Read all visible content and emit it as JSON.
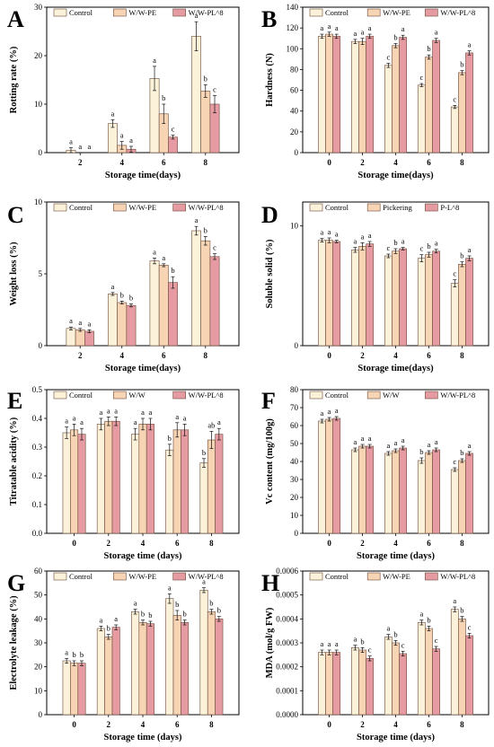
{
  "colors": {
    "control": "#fbf2d9",
    "treat1": "#f7d4b4",
    "treat2": "#e59ba1"
  },
  "chart_data": [
    {
      "letter": "A",
      "type": "bar",
      "ylabel": "Rotting rate (%)",
      "xlabel": "Storage time(days)",
      "categories": [
        "2",
        "4",
        "6",
        "8"
      ],
      "ylim": [
        0,
        30
      ],
      "yticks": [
        "0",
        "10",
        "20",
        "30"
      ],
      "series": [
        {
          "name": "Control",
          "values": [
            0.5,
            6.0,
            15.3,
            24.0
          ],
          "errors": [
            0.5,
            0.8,
            2.5,
            3.0
          ],
          "sig": [
            "a",
            "a",
            "a",
            "a"
          ]
        },
        {
          "name": "W/W-PE",
          "values": [
            0.0,
            1.5,
            8.0,
            12.7
          ],
          "errors": [
            0,
            0.8,
            2.0,
            1.3
          ],
          "sig": [
            "a",
            "a",
            "b",
            "b"
          ]
        },
        {
          "name": "W/W-PL^8",
          "values": [
            0.0,
            0.7,
            3.2,
            10.0
          ],
          "errors": [
            0,
            0.6,
            0.4,
            1.8
          ],
          "sig": [
            "a",
            "a",
            "c",
            "c"
          ]
        }
      ]
    },
    {
      "letter": "B",
      "type": "bar",
      "ylabel": "Hardness (N)",
      "xlabel": "Storage time(days)",
      "categories": [
        "0",
        "2",
        "4",
        "6",
        "8"
      ],
      "ylim": [
        0,
        140
      ],
      "yticks": [
        "0",
        "20",
        "40",
        "60",
        "80",
        "100",
        "120",
        "140"
      ],
      "series": [
        {
          "name": "Control",
          "values": [
            112,
            107,
            84,
            65,
            44
          ],
          "errors": [
            2,
            2,
            2,
            1.5,
            1.5
          ],
          "sig": [
            "a",
            "a",
            "c",
            "c",
            "c"
          ]
        },
        {
          "name": "W/W-PE",
          "values": [
            114,
            107,
            103,
            92,
            77
          ],
          "errors": [
            2,
            3,
            2,
            2,
            2
          ],
          "sig": [
            "a",
            "a",
            "b",
            "b",
            "b"
          ]
        },
        {
          "name": "W/W-PL^8",
          "values": [
            112,
            112,
            111,
            108,
            96
          ],
          "errors": [
            2,
            2,
            2,
            2,
            2
          ],
          "sig": [
            "a",
            "a",
            "a",
            "a",
            "a"
          ]
        }
      ]
    },
    {
      "letter": "C",
      "type": "bar",
      "ylabel": "Weight loss (%)",
      "xlabel": "Storage time(days)",
      "categories": [
        "2",
        "4",
        "6",
        "8"
      ],
      "ylim": [
        0,
        10
      ],
      "yticks": [
        "0",
        "5",
        "10"
      ],
      "series": [
        {
          "name": "Control",
          "values": [
            1.2,
            3.6,
            5.9,
            8.0
          ],
          "errors": [
            0.1,
            0.1,
            0.2,
            0.3
          ],
          "sig": [
            "a",
            "a",
            "a",
            "a"
          ]
        },
        {
          "name": "W/W-PE",
          "values": [
            1.1,
            3.0,
            5.6,
            7.3
          ],
          "errors": [
            0.1,
            0.1,
            0.1,
            0.3
          ],
          "sig": [
            "a",
            "b",
            "a",
            "b"
          ]
        },
        {
          "name": "W/W-PL^8",
          "values": [
            1.0,
            2.8,
            4.4,
            6.2
          ],
          "errors": [
            0.1,
            0.1,
            0.4,
            0.2
          ],
          "sig": [
            "a",
            "b",
            "b",
            "c"
          ]
        }
      ]
    },
    {
      "letter": "D",
      "type": "bar",
      "ylabel": "Soluble solid (%)",
      "xlabel": "Storage time(days)",
      "categories": [
        "0",
        "2",
        "4",
        "6",
        "8"
      ],
      "ylim": [
        0,
        12
      ],
      "yticks": [
        "0",
        "10"
      ],
      "series": [
        {
          "name": "Control",
          "values": [
            8.8,
            8.0,
            7.5,
            7.3,
            5.2
          ],
          "errors": [
            0.15,
            0.2,
            0.15,
            0.3,
            0.3
          ],
          "sig": [
            "a",
            "a",
            "c",
            "c",
            "c"
          ]
        },
        {
          "name": "Pickering",
          "values": [
            8.8,
            8.3,
            7.9,
            7.6,
            6.8
          ],
          "errors": [
            0.2,
            0.3,
            0.2,
            0.2,
            0.2
          ],
          "sig": [
            "a",
            "a",
            "b",
            "b",
            "b"
          ]
        },
        {
          "name": "P-L^8",
          "values": [
            8.7,
            8.5,
            8.1,
            7.9,
            7.3
          ],
          "errors": [
            0.1,
            0.2,
            0.1,
            0.15,
            0.2
          ],
          "sig": [
            "a",
            "a",
            "a",
            "a",
            "a"
          ]
        }
      ]
    },
    {
      "letter": "E",
      "type": "bar",
      "ylabel": "Titratable acidity (%)",
      "xlabel": "Storage time (days)",
      "categories": [
        "0",
        "2",
        "4",
        "6",
        "8"
      ],
      "ylim": [
        0,
        0.5
      ],
      "yticks": [
        "0.0",
        "0.1",
        "0.2",
        "0.3",
        "0.4",
        "0.5"
      ],
      "series": [
        {
          "name": "Control",
          "values": [
            0.35,
            0.38,
            0.345,
            0.29,
            0.245
          ],
          "errors": [
            0.02,
            0.02,
            0.02,
            0.02,
            0.015
          ],
          "sig": [
            "a",
            "a",
            "a",
            "b",
            "b"
          ]
        },
        {
          "name": "W/W",
          "values": [
            0.36,
            0.39,
            0.38,
            0.36,
            0.325
          ],
          "errors": [
            0.02,
            0.015,
            0.02,
            0.025,
            0.03
          ],
          "sig": [
            "a",
            "a",
            "a",
            "a",
            "ab"
          ]
        },
        {
          "name": "W/W-PL^8",
          "values": [
            0.345,
            0.39,
            0.38,
            0.36,
            0.345
          ],
          "errors": [
            0.02,
            0.015,
            0.02,
            0.02,
            0.02
          ],
          "sig": [
            "a",
            "a",
            "a",
            "a",
            "a"
          ]
        }
      ]
    },
    {
      "letter": "F",
      "type": "bar",
      "ylabel": "Vc content (mg/100g)",
      "xlabel": "Storage time (days)",
      "categories": [
        "0",
        "2",
        "4",
        "6",
        "8"
      ],
      "ylim": [
        0,
        80
      ],
      "yticks": [
        "0",
        "10",
        "20",
        "30",
        "40",
        "50",
        "60",
        "70",
        "80"
      ],
      "series": [
        {
          "name": "Control",
          "values": [
            62.5,
            46.5,
            44.5,
            40.5,
            35.5
          ],
          "errors": [
            1,
            1,
            1,
            1.5,
            1
          ],
          "sig": [
            "a",
            "a",
            "a",
            "b",
            "c"
          ]
        },
        {
          "name": "W/W",
          "values": [
            63.5,
            48.5,
            46,
            45,
            40.5
          ],
          "errors": [
            1,
            1,
            1,
            1,
            1
          ],
          "sig": [
            "a",
            "a",
            "a",
            "a",
            "b"
          ]
        },
        {
          "name": "W/W-PL^8",
          "values": [
            64,
            48.5,
            47.5,
            46.5,
            44.5
          ],
          "errors": [
            1,
            1,
            1,
            1,
            1
          ],
          "sig": [
            "a",
            "a",
            "a",
            "a",
            "a"
          ]
        }
      ]
    },
    {
      "letter": "G",
      "type": "bar",
      "ylabel": "Electrolyte leakage (%)",
      "xlabel": "Storage time (days)",
      "categories": [
        "0",
        "2",
        "4",
        "6",
        "8"
      ],
      "ylim": [
        0,
        60
      ],
      "yticks": [
        "0",
        "10",
        "20",
        "30",
        "40",
        "50",
        "60"
      ],
      "series": [
        {
          "name": "Control",
          "values": [
            22.5,
            36,
            43,
            48.5,
            52
          ],
          "errors": [
            1,
            1,
            1,
            2,
            1
          ],
          "sig": [
            "a",
            "a",
            "a",
            "a",
            "a"
          ]
        },
        {
          "name": "W/W-PE",
          "values": [
            21.5,
            32.5,
            38.5,
            41.5,
            43
          ],
          "errors": [
            1,
            1,
            1,
            2,
            1
          ],
          "sig": [
            "b",
            "b",
            "b",
            "b",
            "b"
          ]
        },
        {
          "name": "W/W-PL^8",
          "values": [
            21.5,
            36.5,
            38,
            38.5,
            40
          ],
          "errors": [
            1,
            1,
            1,
            1,
            1
          ],
          "sig": [
            "b",
            "a",
            "b",
            "b",
            "b"
          ]
        }
      ]
    },
    {
      "letter": "H",
      "type": "bar",
      "ylabel": "MDA (mol/g FW)",
      "xlabel": "Storage time (days)",
      "categories": [
        "0",
        "2",
        "4",
        "6",
        "8"
      ],
      "ylim": [
        0,
        0.0006
      ],
      "yticks": [
        "0.0000",
        "0.0001",
        "0.0002",
        "0.0003",
        "0.0004",
        "0.0005",
        "0.0006"
      ],
      "series": [
        {
          "name": "Control",
          "values": [
            0.00026,
            0.00028,
            0.000325,
            0.000385,
            0.00044
          ],
          "errors": [
            1e-05,
            1e-05,
            1e-05,
            1e-05,
            1e-05
          ],
          "sig": [
            "a",
            "a",
            "a",
            "a",
            "a"
          ]
        },
        {
          "name": "W/W-PE",
          "values": [
            0.00026,
            0.00027,
            0.0003,
            0.00036,
            0.0004
          ],
          "errors": [
            1e-05,
            1e-05,
            1e-05,
            1e-05,
            1e-05
          ],
          "sig": [
            "a",
            "b",
            "b",
            "b",
            "b"
          ]
        },
        {
          "name": "W/W-PL^8",
          "values": [
            0.00026,
            0.000235,
            0.000255,
            0.000275,
            0.00033
          ],
          "errors": [
            1e-05,
            1e-05,
            1e-05,
            1e-05,
            1e-05
          ],
          "sig": [
            "a",
            "c",
            "c",
            "c",
            "c"
          ]
        }
      ]
    }
  ]
}
